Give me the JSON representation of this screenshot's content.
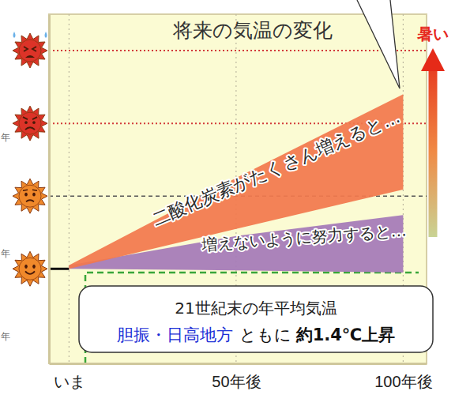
{
  "chart_data": {
    "type": "area_band",
    "title": "将来の気温の変化",
    "x": [
      0,
      50,
      100
    ],
    "series": [
      {
        "name": "二酸化炭素がたくさん増えると…",
        "color": "#f2784e",
        "values": [
          0.05,
          1.25,
          2.4
        ],
        "lower": [
          0,
          0.55,
          1.09
        ]
      },
      {
        "name": "増えないように努力すると…",
        "color": "#a57ab8",
        "values": [
          0.05,
          0.45,
          0.74
        ],
        "lower": [
          0,
          -0.02,
          -0.05
        ]
      }
    ],
    "xlim": [
      -6,
      107
    ],
    "xticks": [
      {
        "value": 0,
        "label": "いま"
      },
      {
        "value": 50,
        "label": "50年後"
      },
      {
        "value": 100,
        "label": "100年後"
      }
    ],
    "ylim": [
      -1.3,
      3.5
    ],
    "yticks": [
      0,
      1,
      2,
      3
    ],
    "tick_labels": "x",
    "grid": true,
    "y_direction_label": "暑い",
    "callout": {
      "line1": "21世紀末の年平均気温",
      "region": "胆振・日高地方",
      "middle": "ともに",
      "change": "約1.4℃上昇"
    },
    "side_texts": [
      "年",
      "年",
      "年"
    ]
  }
}
